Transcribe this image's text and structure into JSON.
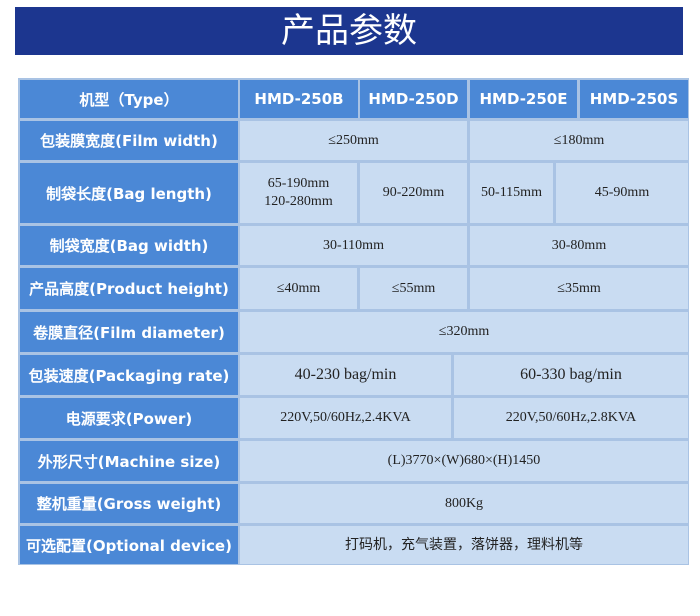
{
  "title": "产品参数",
  "header": {
    "type": "机型（Type）",
    "models": [
      "HMD-250B",
      "HMD-250D",
      "HMD-250E",
      "HMD-250S"
    ]
  },
  "rows": {
    "film_width": {
      "label": "包装膜宽度(Film width)",
      "v1": "≤250mm",
      "v2": "≤180mm"
    },
    "bag_length": {
      "label": "制袋长度(Bag length)",
      "b1": "65-190mm",
      "b2": "120-280mm",
      "d": "90-220mm",
      "e": "50-115mm",
      "s": "45-90mm"
    },
    "bag_width": {
      "label": "制袋宽度(Bag width)",
      "v1": "30-110mm",
      "v2": "30-80mm"
    },
    "product_height": {
      "label": "产品高度(Product height)",
      "b": "≤40mm",
      "d": "≤55mm",
      "es": "≤35mm"
    },
    "film_diameter": {
      "label": "卷膜直径(Film diameter)",
      "v": "≤320mm"
    },
    "packaging_rate": {
      "label": "包装速度(Packaging rate)",
      "v1": "40-230 bag/min",
      "v2": "60-330 bag/min"
    },
    "power": {
      "label": "电源要求(Power)",
      "v1": "220V,50/60Hz,2.4KVA",
      "v2": "220V,50/60Hz,2.8KVA"
    },
    "machine_size": {
      "label": "外形尺寸(Machine size)",
      "v": "(L)3770×(W)680×(H)1450"
    },
    "gross_weight": {
      "label": "整机重量(Gross weight)",
      "v": "800Kg"
    },
    "optional_device": {
      "label": "可选配置(Optional device)",
      "v": "打码机，充气装置，落饼器，理料机等"
    }
  }
}
